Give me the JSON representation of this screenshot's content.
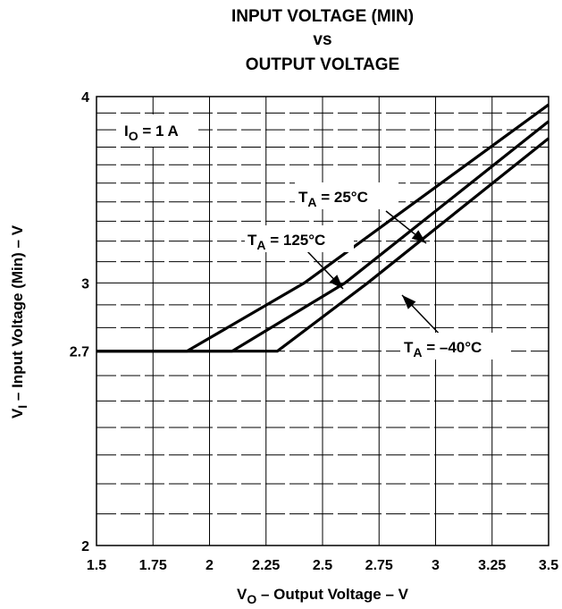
{
  "chart_data": {
    "type": "line",
    "title_lines": [
      "INPUT VOLTAGE (MIN)",
      "vs",
      "OUTPUT VOLTAGE"
    ],
    "xlabel": {
      "main": "V",
      "sub": "O",
      "rest": " – Output Voltage – V"
    },
    "ylabel": {
      "main": "V",
      "sub": "I",
      "rest": " – Input Voltage (Min) – V"
    },
    "xlim": [
      1.5,
      3.5
    ],
    "ylim": [
      2,
      4
    ],
    "x_ticks": [
      {
        "value": 1.5,
        "label": "1.5"
      },
      {
        "value": 1.75,
        "label": "1.75"
      },
      {
        "value": 2.0,
        "label": "2"
      },
      {
        "value": 2.25,
        "label": "2.25"
      },
      {
        "value": 2.5,
        "label": "2.5"
      },
      {
        "value": 2.75,
        "label": "2.75"
      },
      {
        "value": 3.0,
        "label": "3"
      },
      {
        "value": 3.25,
        "label": "3.25"
      },
      {
        "value": 3.5,
        "label": "3.5"
      }
    ],
    "y_ticks": [
      {
        "value": 2.0,
        "label": "2"
      },
      {
        "value": 2.7,
        "label": "2.7"
      },
      {
        "value": 3.0,
        "label": "3"
      },
      {
        "value": 4.0,
        "label": "4"
      }
    ],
    "y_scale": "log",
    "grid": true,
    "condition": {
      "main": "I",
      "sub": "O",
      "rest": " = 1 A"
    },
    "series": [
      {
        "name": {
          "main": "T",
          "sub": "A",
          "rest": " = 25°C"
        },
        "x": [
          1.5,
          2.1,
          2.6,
          3.5
        ],
        "y": [
          2.7,
          2.7,
          3.0,
          3.85
        ]
      },
      {
        "name": {
          "main": "T",
          "sub": "A",
          "rest": " = 125°C"
        },
        "x": [
          1.5,
          1.9,
          2.42,
          3.5
        ],
        "y": [
          2.7,
          2.7,
          3.0,
          3.95
        ]
      },
      {
        "name": {
          "main": "T",
          "sub": "A",
          "rest": " = –40°C"
        },
        "x": [
          1.5,
          2.3,
          2.7,
          3.5
        ],
        "y": [
          2.7,
          2.7,
          3.0,
          3.75
        ]
      }
    ]
  }
}
